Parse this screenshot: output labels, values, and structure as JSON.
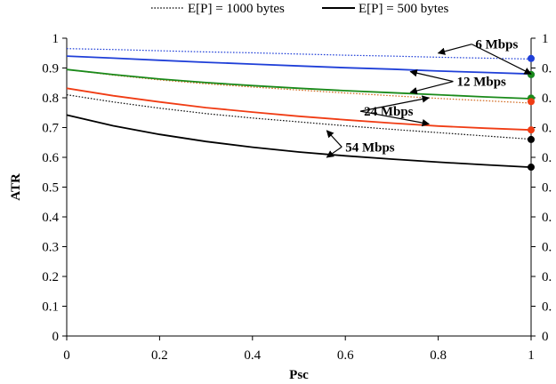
{
  "chart_data": {
    "type": "line",
    "xlabel": "Psc",
    "ylabel": "ATR",
    "xlim": [
      0,
      1
    ],
    "ylim": [
      0,
      1
    ],
    "x_ticks": [
      0,
      0.2,
      0.4,
      0.6,
      0.8,
      1
    ],
    "x_tick_labels": [
      "0",
      "0.2",
      "0.4",
      "0.6",
      "0.8",
      "1"
    ],
    "y_ticks": [
      0,
      0.1,
      0.2,
      0.3,
      0.4,
      0.5,
      0.6,
      0.7,
      0.8,
      0.9,
      1
    ],
    "y_tick_labels": [
      "0",
      "0.1",
      "0.2",
      "0.3",
      "0.4",
      "0.5",
      "0.6",
      "0.7",
      "0.8",
      "0.9",
      "1"
    ],
    "right_tick_labels": [
      "0",
      "0.",
      "0.",
      "0.",
      "0.",
      "0.",
      "0.",
      "0.",
      "0.",
      "0.",
      "1"
    ],
    "grid": false,
    "legend_position": "top",
    "legend": [
      {
        "label": "E[P] = 1000 bytes",
        "style": "dotted"
      },
      {
        "label": "E[P] = 500 bytes",
        "style": "solid"
      }
    ],
    "x": [
      0,
      0.1,
      0.2,
      0.3,
      0.4,
      0.5,
      0.6,
      0.7,
      0.8,
      0.9,
      1
    ],
    "series": [
      {
        "style": "dotted",
        "color": "#1f3fd8",
        "values": [
          0.965,
          0.962,
          0.958,
          0.954,
          0.951,
          0.947,
          0.943,
          0.94,
          0.936,
          0.933,
          0.93
        ]
      },
      {
        "style": "solid",
        "color": "#1f3fd8",
        "values": [
          0.94,
          0.933,
          0.926,
          0.919,
          0.913,
          0.907,
          0.901,
          0.896,
          0.89,
          0.885,
          0.88
        ]
      },
      {
        "style": "dotted",
        "color": "#d2691e",
        "values": [
          0.895,
          0.876,
          0.86,
          0.847,
          0.836,
          0.826,
          0.816,
          0.807,
          0.798,
          0.79,
          0.782
        ]
      },
      {
        "style": "solid",
        "color": "#1a8a1a",
        "values": [
          0.895,
          0.878,
          0.863,
          0.851,
          0.841,
          0.832,
          0.824,
          0.817,
          0.81,
          0.803,
          0.797
        ]
      },
      {
        "style": "dotted",
        "color": "#111111",
        "values": [
          0.81,
          0.786,
          0.765,
          0.747,
          0.732,
          0.719,
          0.706,
          0.694,
          0.683,
          0.672,
          0.661
        ]
      },
      {
        "style": "solid",
        "color": "#f03c14",
        "values": [
          0.832,
          0.807,
          0.786,
          0.767,
          0.752,
          0.738,
          0.726,
          0.715,
          0.705,
          0.698,
          0.692
        ]
      },
      {
        "style": "solid",
        "color": "#000000",
        "values": [
          0.742,
          0.706,
          0.677,
          0.653,
          0.634,
          0.618,
          0.605,
          0.594,
          0.584,
          0.575,
          0.567
        ]
      }
    ],
    "end_markers": [
      {
        "y": 0.932,
        "color": "#1f3fd8"
      },
      {
        "y": 0.878,
        "color": "#1f3fd8"
      },
      {
        "y": 0.878,
        "color": "#1a8a1a"
      },
      {
        "y": 0.799,
        "color": "#1a8a1a"
      },
      {
        "y": 0.787,
        "color": "#f03c14"
      },
      {
        "y": 0.692,
        "color": "#f03c14"
      },
      {
        "y": 0.66,
        "color": "#000000"
      },
      {
        "y": 0.567,
        "color": "#000000"
      }
    ],
    "annotations": [
      {
        "text": "6 Mbps",
        "label_at": [
          0.88,
          0.965
        ],
        "arrows_to": [
          [
            0.8,
            0.95
          ],
          [
            1.0,
            0.88
          ]
        ]
      },
      {
        "text": "12 Mbps",
        "label_at": [
          0.84,
          0.84
        ],
        "arrows_to": [
          [
            0.74,
            0.888
          ],
          [
            0.74,
            0.818
          ]
        ]
      },
      {
        "text": "24 Mbps",
        "label_at": [
          0.64,
          0.74
        ],
        "arrows_to": [
          [
            0.78,
            0.8
          ],
          [
            0.78,
            0.712
          ]
        ]
      },
      {
        "text": "54 Mbps",
        "label_at": [
          0.6,
          0.62
        ],
        "arrows_to": [
          [
            0.56,
            0.69
          ],
          [
            0.56,
            0.6
          ]
        ]
      }
    ]
  }
}
